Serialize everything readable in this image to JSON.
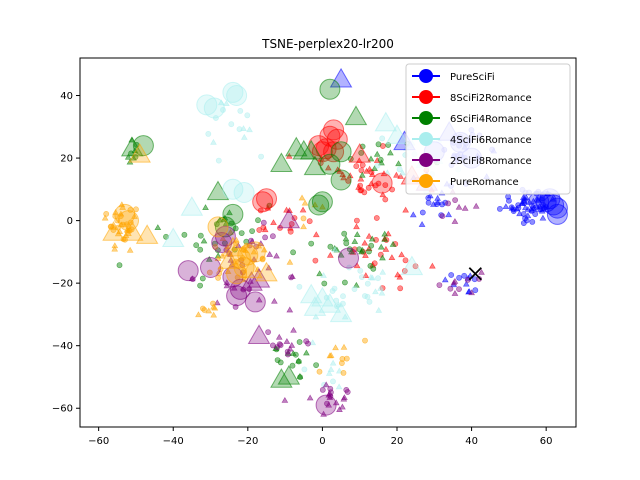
{
  "chart_data": {
    "type": "scatter",
    "title": "TSNE-perplex20-lr200",
    "xlabel": "",
    "ylabel": "",
    "xlim": [
      -65,
      68
    ],
    "ylim": [
      -66,
      52
    ],
    "xticks": [
      -60,
      -40,
      -20,
      0,
      20,
      40,
      60
    ],
    "yticks": [
      -60,
      -40,
      -20,
      0,
      20,
      40
    ],
    "grid": false,
    "legend_position": "top-right",
    "series": [
      {
        "name": "PureSciFi",
        "color": "#0000ff",
        "clusters": [
          {
            "cx": 55,
            "cy": 5,
            "rx": 6,
            "ry": 4,
            "n": 55
          },
          {
            "cx": 38,
            "cy": 22,
            "rx": 5,
            "ry": 6,
            "n": 25
          },
          {
            "cx": 30,
            "cy": 6,
            "rx": 6,
            "ry": 5,
            "n": 20
          },
          {
            "cx": 38,
            "cy": -20,
            "rx": 5,
            "ry": 5,
            "n": 12
          }
        ],
        "large_markers": [
          {
            "x": 61,
            "y": 7,
            "s": "circle"
          },
          {
            "x": 62,
            "y": 5,
            "s": "circle"
          },
          {
            "x": 63,
            "y": 4,
            "s": "circle"
          },
          {
            "x": 60,
            "y": 6,
            "s": "circle"
          },
          {
            "x": 63,
            "y": 2,
            "s": "circle"
          },
          {
            "x": 58,
            "y": 6,
            "s": "circle"
          },
          {
            "x": 5,
            "y": 45,
            "s": "triangle"
          },
          {
            "x": 22,
            "y": 25,
            "s": "triangle"
          },
          {
            "x": 34,
            "y": 28,
            "s": "triangle"
          },
          {
            "x": 30,
            "y": 22,
            "s": "circle"
          },
          {
            "x": 37,
            "y": 25,
            "s": "circle"
          },
          {
            "x": 40,
            "y": 20,
            "s": "circle"
          }
        ]
      },
      {
        "name": "8SciFi2Romance",
        "color": "#ff0000",
        "clusters": [
          {
            "cx": 12,
            "cy": 15,
            "rx": 10,
            "ry": 8,
            "n": 40
          },
          {
            "cx": 15,
            "cy": -10,
            "rx": 12,
            "ry": 8,
            "n": 35
          },
          {
            "cx": -10,
            "cy": 0,
            "rx": 8,
            "ry": 6,
            "n": 15
          }
        ],
        "large_markers": [
          {
            "x": 2,
            "y": 27,
            "s": "circle"
          },
          {
            "x": 3,
            "y": 29,
            "s": "circle"
          },
          {
            "x": 4,
            "y": 26,
            "s": "circle"
          },
          {
            "x": -1,
            "y": 24,
            "s": "circle"
          },
          {
            "x": 1,
            "y": 23,
            "s": "circle"
          },
          {
            "x": 0,
            "y": 22,
            "s": "circle"
          },
          {
            "x": 3,
            "y": 22,
            "s": "circle"
          },
          {
            "x": 16,
            "y": 12,
            "s": "circle"
          },
          {
            "x": -15,
            "y": 7,
            "s": "circle"
          },
          {
            "x": -16,
            "y": 6,
            "s": "circle"
          },
          {
            "x": 10,
            "y": 21,
            "s": "triangle"
          },
          {
            "x": 24,
            "y": 14,
            "s": "triangle"
          }
        ]
      },
      {
        "name": "6SciFi4Romance",
        "color": "#008000",
        "clusters": [
          {
            "cx": -30,
            "cy": -5,
            "rx": 12,
            "ry": 10,
            "n": 30
          },
          {
            "cx": 5,
            "cy": -10,
            "rx": 10,
            "ry": 10,
            "n": 30
          },
          {
            "cx": -8,
            "cy": -45,
            "rx": 6,
            "ry": 6,
            "n": 15
          },
          {
            "cx": -50,
            "cy": 20,
            "rx": 5,
            "ry": 5,
            "n": 8
          },
          {
            "cx": 15,
            "cy": 20,
            "rx": 8,
            "ry": 6,
            "n": 15
          }
        ],
        "large_markers": [
          {
            "x": 2,
            "y": 42,
            "s": "circle"
          },
          {
            "x": 9,
            "y": 33,
            "s": "triangle"
          },
          {
            "x": -7,
            "y": 23,
            "s": "triangle"
          },
          {
            "x": -5,
            "y": 22,
            "s": "triangle"
          },
          {
            "x": -3,
            "y": 22,
            "s": "triangle"
          },
          {
            "x": -2,
            "y": 17,
            "s": "triangle"
          },
          {
            "x": 5,
            "y": 22,
            "s": "circle"
          },
          {
            "x": 2,
            "y": 18,
            "s": "circle"
          },
          {
            "x": 5,
            "y": 13,
            "s": "circle"
          },
          {
            "x": 0,
            "y": 6,
            "s": "circle"
          },
          {
            "x": -1,
            "y": 5,
            "s": "circle"
          },
          {
            "x": -11,
            "y": 18,
            "s": "triangle"
          },
          {
            "x": -48,
            "y": 24,
            "s": "circle"
          },
          {
            "x": -51,
            "y": 23,
            "s": "triangle"
          },
          {
            "x": -28,
            "y": 9,
            "s": "triangle"
          },
          {
            "x": -24,
            "y": 2,
            "s": "circle"
          },
          {
            "x": -26,
            "y": -2,
            "s": "circle"
          },
          {
            "x": -9,
            "y": -50,
            "s": "triangle"
          },
          {
            "x": -11,
            "y": -51,
            "s": "triangle"
          }
        ]
      },
      {
        "name": "4SciFi6Romance",
        "color": "#aaeeee",
        "clusters": [
          {
            "cx": 5,
            "cy": -22,
            "rx": 12,
            "ry": 10,
            "n": 30
          },
          {
            "cx": -25,
            "cy": 30,
            "rx": 8,
            "ry": 6,
            "n": 15
          },
          {
            "cx": 25,
            "cy": 20,
            "rx": 8,
            "ry": 8,
            "n": 20
          },
          {
            "cx": 2,
            "cy": -50,
            "rx": 4,
            "ry": 4,
            "n": 8
          }
        ],
        "large_markers": [
          {
            "x": -31,
            "y": 37,
            "s": "circle"
          },
          {
            "x": -29,
            "y": 36,
            "s": "circle"
          },
          {
            "x": -24,
            "y": 41,
            "s": "circle"
          },
          {
            "x": -23,
            "y": 40,
            "s": "circle"
          },
          {
            "x": -24,
            "y": 10,
            "s": "circle"
          },
          {
            "x": -21,
            "y": 9,
            "s": "circle"
          },
          {
            "x": -3,
            "y": -24,
            "s": "triangle"
          },
          {
            "x": 0,
            "y": -25,
            "s": "triangle"
          },
          {
            "x": 2,
            "y": -27,
            "s": "triangle"
          },
          {
            "x": -2,
            "y": -28,
            "s": "triangle"
          },
          {
            "x": 5,
            "y": -30,
            "s": "triangle"
          },
          {
            "x": 17,
            "y": 31,
            "s": "triangle"
          },
          {
            "x": 20,
            "y": 27,
            "s": "triangle"
          },
          {
            "x": 24,
            "y": -15,
            "s": "triangle"
          },
          {
            "x": -40,
            "y": -6,
            "s": "triangle"
          },
          {
            "x": -35,
            "y": 4,
            "s": "triangle"
          }
        ]
      },
      {
        "name": "2SciFi8Romance",
        "color": "#800080",
        "clusters": [
          {
            "cx": -20,
            "cy": -15,
            "rx": 12,
            "ry": 10,
            "n": 35
          },
          {
            "cx": 2,
            "cy": -55,
            "rx": 5,
            "ry": 5,
            "n": 20
          },
          {
            "cx": -10,
            "cy": -40,
            "rx": 8,
            "ry": 6,
            "n": 15
          },
          {
            "cx": 35,
            "cy": -20,
            "rx": 5,
            "ry": 5,
            "n": 10
          },
          {
            "cx": 35,
            "cy": 5,
            "rx": 5,
            "ry": 5,
            "n": 8
          }
        ],
        "large_markers": [
          {
            "x": -36,
            "y": -16,
            "s": "circle"
          },
          {
            "x": -30,
            "y": -15,
            "s": "circle"
          },
          {
            "x": -27,
            "y": -7,
            "s": "circle"
          },
          {
            "x": -26,
            "y": -5,
            "s": "circle"
          },
          {
            "x": -24,
            "y": -18,
            "s": "circle"
          },
          {
            "x": -23,
            "y": -24,
            "s": "circle"
          },
          {
            "x": -22,
            "y": -22,
            "s": "circle"
          },
          {
            "x": -18,
            "y": -26,
            "s": "circle"
          },
          {
            "x": -19,
            "y": -20,
            "s": "triangle"
          },
          {
            "x": -17,
            "y": -19,
            "s": "triangle"
          },
          {
            "x": -17,
            "y": -37,
            "s": "triangle"
          },
          {
            "x": -9,
            "y": 0,
            "s": "triangle"
          },
          {
            "x": 1,
            "y": -59,
            "s": "circle"
          },
          {
            "x": 7,
            "y": -12,
            "s": "circle"
          },
          {
            "x": 28,
            "y": 12,
            "s": "triangle"
          }
        ]
      },
      {
        "name": "PureRomance",
        "color": "#ffa500",
        "clusters": [
          {
            "cx": -55,
            "cy": -2,
            "rx": 5,
            "ry": 6,
            "n": 35
          },
          {
            "cx": -22,
            "cy": -12,
            "rx": 8,
            "ry": 8,
            "n": 30
          },
          {
            "cx": -30,
            "cy": -28,
            "rx": 4,
            "ry": 3,
            "n": 8
          },
          {
            "cx": 5,
            "cy": -45,
            "rx": 6,
            "ry": 6,
            "n": 10
          },
          {
            "cx": -5,
            "cy": 5,
            "rx": 4,
            "ry": 4,
            "n": 6
          }
        ],
        "large_markers": [
          {
            "x": -53,
            "y": 2,
            "s": "circle"
          },
          {
            "x": -52,
            "y": 0,
            "s": "circle"
          },
          {
            "x": -56,
            "y": -4,
            "s": "triangle"
          },
          {
            "x": -51,
            "y": -4,
            "s": "triangle"
          },
          {
            "x": -47,
            "y": -5,
            "s": "triangle"
          },
          {
            "x": -49,
            "y": 21,
            "s": "triangle"
          },
          {
            "x": -24,
            "y": -9,
            "s": "triangle"
          },
          {
            "x": -22,
            "y": -12,
            "s": "circle"
          },
          {
            "x": -20,
            "y": -11,
            "s": "circle"
          },
          {
            "x": -21,
            "y": -15,
            "s": "circle"
          },
          {
            "x": -18,
            "y": -10,
            "s": "circle"
          },
          {
            "x": -23,
            "y": -17,
            "s": "circle"
          },
          {
            "x": -25,
            "y": -13,
            "s": "triangle"
          },
          {
            "x": -19,
            "y": -16,
            "s": "triangle"
          },
          {
            "x": -15,
            "y": -17,
            "s": "triangle"
          },
          {
            "x": -28,
            "y": -2,
            "s": "circle"
          }
        ]
      }
    ],
    "annotations": [
      {
        "type": "x-marker",
        "x": 41,
        "y": -17,
        "color": "#000000"
      }
    ]
  }
}
